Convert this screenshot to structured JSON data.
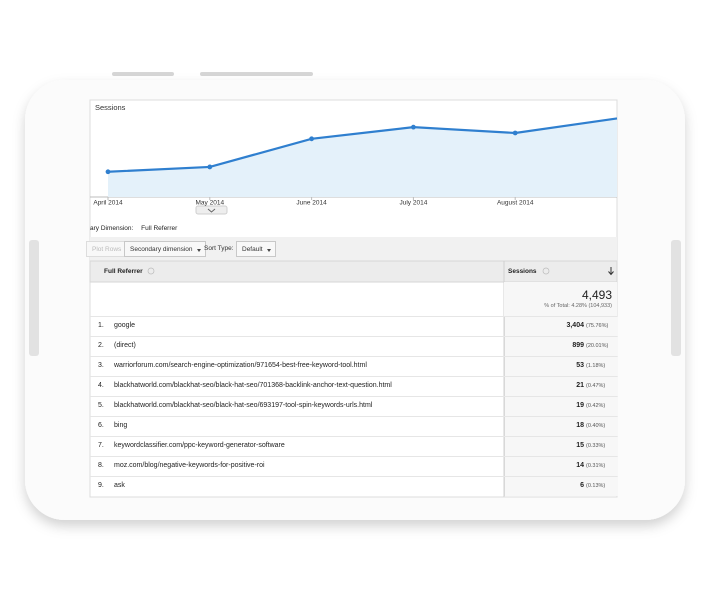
{
  "chart_data": {
    "type": "line",
    "title": "Sessions",
    "categories": [
      "April 2014",
      "May 2014",
      "June 2014",
      "July 2014",
      "August 2014",
      null
    ],
    "values": [
      26,
      31,
      60,
      72,
      66,
      81
    ],
    "ylim": [
      0,
      100
    ],
    "color": "#2f7fcf"
  },
  "toolbar": {
    "dimension_label": "ary Dimension:",
    "dimension_value": "Full Referrer",
    "plot_rows": "Plot Rows",
    "secondary": "Secondary dimension",
    "sort_type": "Sort Type:",
    "sort_default": "Default"
  },
  "table": {
    "columns": [
      "Full Referrer",
      "Sessions"
    ],
    "total": "4,493",
    "total_note": "% of Total: 4.28% (104,933)",
    "rows": [
      [
        "1.",
        "google",
        "3,404",
        "(75.76%)"
      ],
      [
        "2.",
        "(direct)",
        "899",
        "(20.01%)"
      ],
      [
        "3.",
        "warriorforum.com/search-engine-optimization/971654-best-free-keyword-tool.html",
        "53",
        "(1.18%)"
      ],
      [
        "4.",
        "blackhatworld.com/blackhat-seo/black-hat-seo/701368-backlink-anchor-text-question.html",
        "21",
        "(0.47%)"
      ],
      [
        "5.",
        "blackhatworld.com/blackhat-seo/black-hat-seo/693197-tool-spin-keywords-urls.html",
        "19",
        "(0.42%)"
      ],
      [
        "6.",
        "bing",
        "18",
        "(0.40%)"
      ],
      [
        "7.",
        "keywordclassifier.com/ppc-keyword-generator-software",
        "15",
        "(0.33%)"
      ],
      [
        "8.",
        "moz.com/blog/negative-keywords-for-positive-roi",
        "14",
        "(0.31%)"
      ],
      [
        "9.",
        "ask",
        "6",
        "(0.13%)"
      ]
    ]
  }
}
